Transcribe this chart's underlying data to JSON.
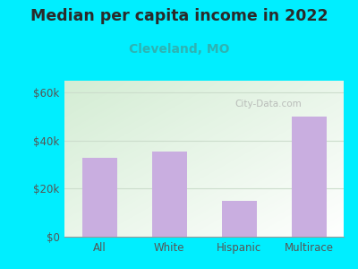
{
  "title": "Median per capita income in 2022",
  "subtitle": "Cleveland, MO",
  "categories": [
    "All",
    "White",
    "Hispanic",
    "Multirace"
  ],
  "values": [
    33000,
    35500,
    15000,
    50000
  ],
  "bar_color": "#c9aee0",
  "title_fontsize": 12.5,
  "subtitle_fontsize": 10,
  "subtitle_color": "#2db3b3",
  "title_color": "#2a2a2a",
  "background_outer": "#00eeff",
  "tick_label_color": "#555555",
  "ylim": [
    0,
    65000
  ],
  "yticks": [
    0,
    20000,
    40000,
    60000
  ],
  "ytick_labels": [
    "$0",
    "$20k",
    "$40k",
    "$60k"
  ],
  "watermark": "City-Data.com",
  "watermark_color": "#aaaaaa",
  "grid_color": "#ccddcc",
  "grad_top_left": "#d4edd4",
  "grad_bottom_right": "#f8fff8"
}
